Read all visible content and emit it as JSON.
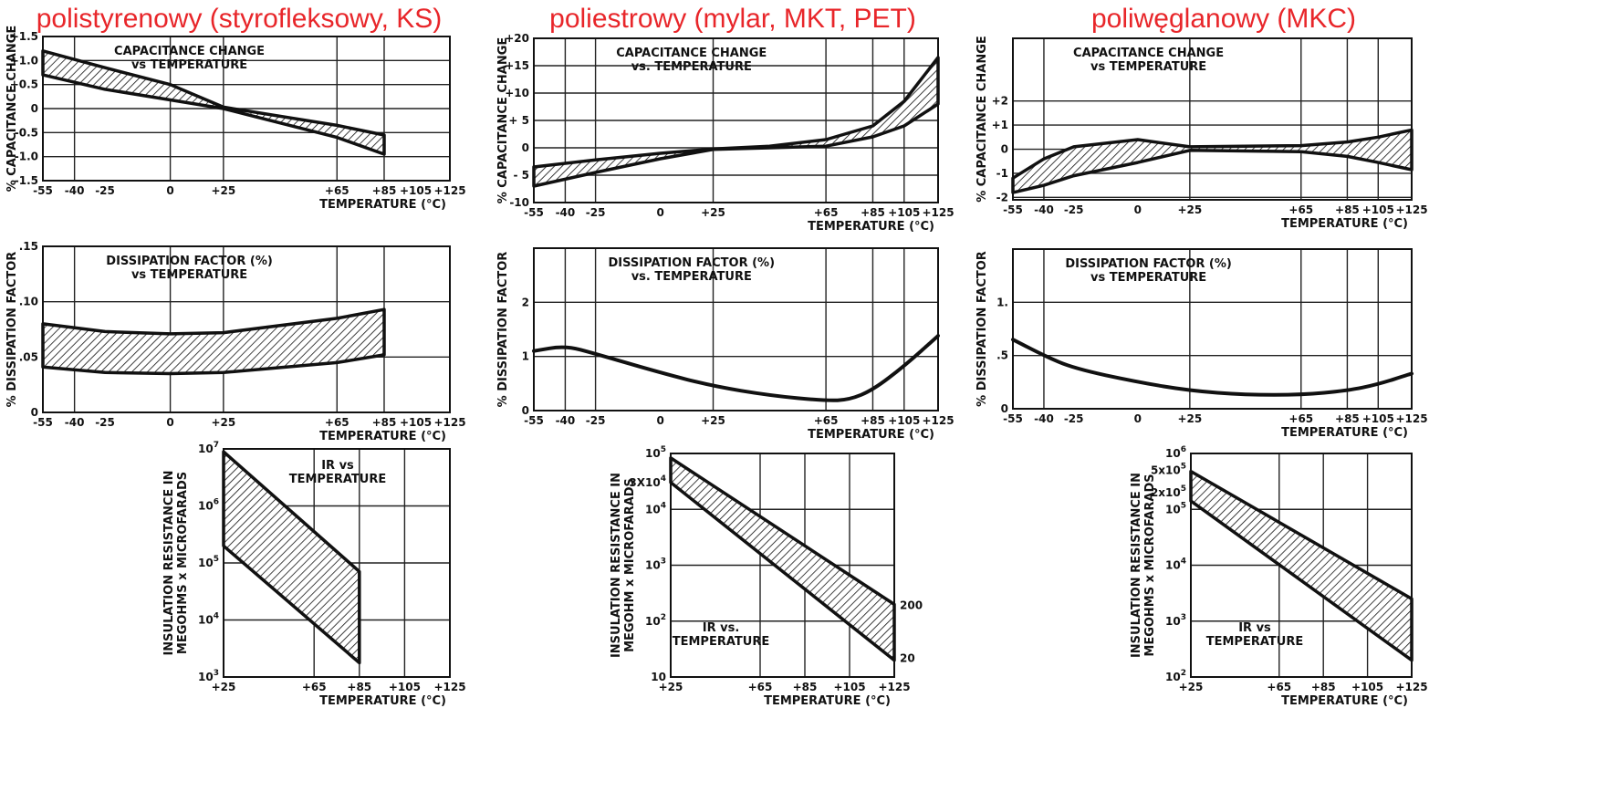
{
  "column_titles": [
    "polistyrenowy (styrofleksowy, KS)",
    "poliestrowy (mylar, MKT, PET)",
    "poliwęglanowy (MKC)"
  ],
  "chart_data": [
    {
      "type": "area",
      "column": 0,
      "row": 0,
      "title": [
        "CAPACITANCE CHANGE",
        "vs TEMPERATURE"
      ],
      "xlabel": "TEMPERATURE (°C)",
      "ylabel": "% CAPACITANCE CHANGE",
      "x_ticks": [
        "-55",
        "-40",
        "-25",
        "0",
        "+25",
        "+65",
        "+85",
        "+105",
        "+125"
      ],
      "y_ticks": [
        "+1.5",
        "+1.0",
        "+0.5",
        "0",
        "-0.5",
        "-1.0",
        "-1.5"
      ],
      "xlim": [
        -55,
        125
      ],
      "ylim": [
        -1.5,
        1.5
      ],
      "band": {
        "x": [
          -55,
          -25,
          0,
          25,
          65,
          85
        ],
        "upper": [
          1.2,
          0.85,
          0.5,
          0.03,
          -0.35,
          -0.55
        ],
        "lower": [
          0.7,
          0.4,
          0.18,
          0.0,
          -0.6,
          -0.95
        ]
      }
    },
    {
      "type": "area",
      "column": 0,
      "row": 1,
      "title": [
        "DISSIPATION FACTOR (%)",
        "vs TEMPERATURE"
      ],
      "xlabel": "TEMPERATURE (°C)",
      "ylabel": "% DISSIPATION FACTOR",
      "x_ticks": [
        "-55",
        "-40",
        "-25",
        "0",
        "+25",
        "+65",
        "+85",
        "+105",
        "+125"
      ],
      "y_ticks": [
        ".15",
        ".10",
        ".05",
        "0"
      ],
      "xlim": [
        -55,
        125
      ],
      "ylim": [
        0,
        0.15
      ],
      "band": {
        "x": [
          -55,
          -25,
          0,
          25,
          65,
          85
        ],
        "upper": [
          0.08,
          0.073,
          0.071,
          0.072,
          0.085,
          0.093
        ],
        "lower": [
          0.041,
          0.036,
          0.035,
          0.036,
          0.045,
          0.052
        ]
      }
    },
    {
      "type": "area",
      "column": 0,
      "row": 2,
      "title": [
        "IR vs",
        "TEMPERATURE"
      ],
      "xlabel": "TEMPERATURE (°C)",
      "ylabel": "INSULATION RESISTANCE IN MEGOHMS x MICROFARADS",
      "x_ticks": [
        "+25",
        "+65",
        "+85",
        "+105",
        "+125"
      ],
      "y_ticks": [
        "10^7",
        "10^6",
        "10^5",
        "10^4",
        "10^3"
      ],
      "xlim": [
        25,
        125
      ],
      "ylim": [
        3,
        7
      ],
      "y_scale": "log10",
      "band": {
        "x": [
          25,
          85
        ],
        "upper": [
          6.95,
          4.85
        ],
        "lower": [
          5.3,
          3.25
        ]
      }
    },
    {
      "type": "area",
      "column": 1,
      "row": 0,
      "title": [
        "CAPACITANCE CHANGE",
        "vs. TEMPERATURE"
      ],
      "xlabel": "TEMPERATURE (°C)",
      "ylabel": "% CAPACITANCE CHANGE",
      "x_ticks": [
        "-55",
        "-40",
        "-25",
        "0",
        "+25",
        "+65",
        "+85",
        "+105",
        "+125"
      ],
      "y_ticks": [
        "+20",
        "+15",
        "+10",
        "+ 5",
        "0",
        "- 5",
        "-10"
      ],
      "xlim": [
        -55,
        125
      ],
      "ylim": [
        -10,
        20
      ],
      "band": {
        "x": [
          -55,
          -25,
          0,
          25,
          45,
          65,
          85,
          105,
          125
        ],
        "upper": [
          -3.5,
          -2.2,
          -1.0,
          -0.2,
          0.3,
          1.5,
          4.0,
          8.5,
          16.5
        ],
        "lower": [
          -7.0,
          -4.5,
          -2.0,
          -0.3,
          0.0,
          0.3,
          2.0,
          4.0,
          8.0
        ]
      }
    },
    {
      "type": "line",
      "column": 1,
      "row": 1,
      "title": [
        "DISSIPATION FACTOR (%)",
        "vs. TEMPERATURE"
      ],
      "xlabel": "TEMPERATURE (°C)",
      "ylabel": "% DISSIPATION FACTOR",
      "x_ticks": [
        "-55",
        "-40",
        "-25",
        "0",
        "+25",
        "+65",
        "+85",
        "+105",
        "+125"
      ],
      "y_ticks": [
        "2",
        "1",
        "0"
      ],
      "xlim": [
        -55,
        125
      ],
      "ylim": [
        0,
        3
      ],
      "line": {
        "x": [
          -55,
          -40,
          -25,
          0,
          25,
          45,
          65,
          75,
          85,
          105,
          125
        ],
        "y": [
          1.1,
          1.2,
          1.05,
          0.7,
          0.45,
          0.28,
          0.18,
          0.2,
          0.38,
          0.82,
          1.38
        ]
      }
    },
    {
      "type": "area",
      "column": 1,
      "row": 2,
      "title": [
        "IR vs.",
        "TEMPERATURE"
      ],
      "xlabel": "TEMPERATURE (°C)",
      "ylabel": "INSULATION RESISTANCE IN MEGOHM x MICROFARADS",
      "x_ticks": [
        "+25",
        "+65",
        "+85",
        "+105",
        "+125"
      ],
      "y_ticks": [
        "10^5",
        "3X10^4",
        "10^4",
        "10^3",
        "10^2",
        "10"
      ],
      "xlim": [
        25,
        125
      ],
      "ylim": [
        1,
        5
      ],
      "y_scale": "log10",
      "band": {
        "x": [
          25,
          125
        ],
        "upper": [
          4.92,
          2.3
        ],
        "lower": [
          4.48,
          1.3
        ]
      },
      "band_labels": [
        "200",
        "20"
      ]
    },
    {
      "type": "area",
      "column": 2,
      "row": 0,
      "title": [
        "CAPACITANCE CHANGE",
        "vs TEMPERATURE"
      ],
      "xlabel": "TEMPERATURE (°C)",
      "ylabel": "% CAPACITANCE CHANGE",
      "x_ticks": [
        "-55",
        "-40",
        "-25",
        "0",
        "+25",
        "+65",
        "+85",
        "+105",
        "+125"
      ],
      "y_ticks": [
        "+2",
        "+1",
        "0",
        "-1",
        "-2"
      ],
      "xlim": [
        -55,
        125
      ],
      "ylim": [
        -2.1,
        4.6
      ],
      "band": {
        "x": [
          -55,
          -40,
          -25,
          0,
          25,
          65,
          85,
          105,
          125
        ],
        "upper": [
          -1.2,
          -0.4,
          0.1,
          0.4,
          0.1,
          0.15,
          0.3,
          0.5,
          0.8
        ],
        "lower": [
          -1.8,
          -1.5,
          -1.1,
          -0.55,
          -0.05,
          -0.1,
          -0.3,
          -0.55,
          -0.85
        ]
      }
    },
    {
      "type": "line",
      "column": 2,
      "row": 1,
      "title": [
        "DISSIPATION FACTOR (%)",
        "vs TEMPERATURE"
      ],
      "xlabel": "TEMPERATURE (°C)",
      "ylabel": "% DISSIPATION FACTOR",
      "x_ticks": [
        "-55",
        "-40",
        "-25",
        "0",
        "+25",
        "+65",
        "+85",
        "+105",
        "+125"
      ],
      "y_ticks": [
        "1.",
        ".5",
        "0"
      ],
      "xlim": [
        -55,
        125
      ],
      "ylim": [
        0,
        1.5
      ],
      "line": {
        "x": [
          -55,
          -40,
          -25,
          0,
          25,
          45,
          65,
          85,
          105,
          125
        ],
        "y": [
          0.65,
          0.5,
          0.38,
          0.25,
          0.17,
          0.13,
          0.13,
          0.17,
          0.23,
          0.33
        ]
      }
    },
    {
      "type": "area",
      "column": 2,
      "row": 2,
      "title": [
        "IR vs",
        "TEMPERATURE"
      ],
      "xlabel": "TEMPERATURE (°C)",
      "ylabel": "INSULATION RESISTANCE IN MEGOHMS x MICROFARADS",
      "x_ticks": [
        "+25",
        "+65",
        "+85",
        "+105",
        "+125"
      ],
      "y_ticks": [
        "10^6",
        "5x10^5",
        "2x10^5",
        "10^5",
        "10^4",
        "10^3",
        "10^2"
      ],
      "xlim": [
        25,
        125
      ],
      "ylim": [
        2,
        6
      ],
      "y_scale": "log10",
      "band": {
        "x": [
          25,
          125
        ],
        "upper": [
          5.68,
          3.4
        ],
        "lower": [
          5.15,
          2.3
        ]
      }
    }
  ]
}
